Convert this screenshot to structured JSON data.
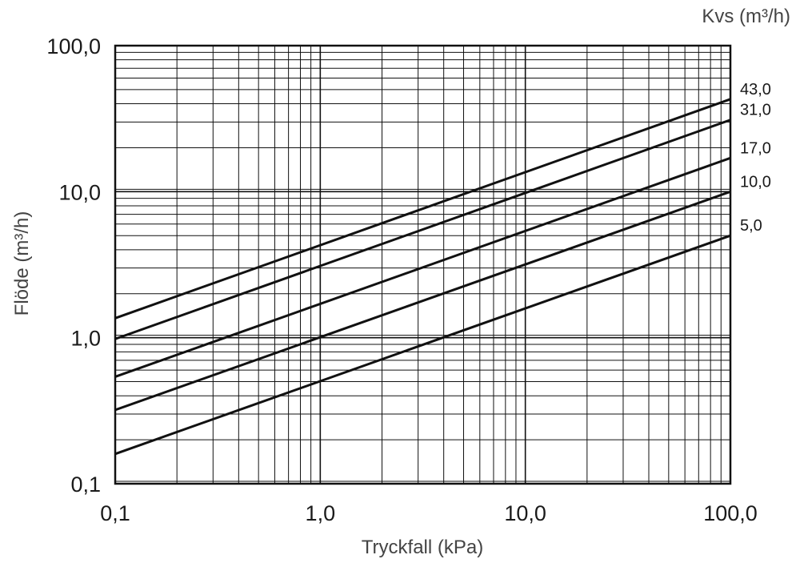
{
  "chart_data": {
    "type": "line",
    "title": "",
    "xlabel": "Tryckfall (kPa)",
    "ylabel": "Flöde (m³/h)",
    "legend_title": "Kvs (m³/h)",
    "x_scale": "log",
    "y_scale": "log",
    "xlim": [
      0.1,
      100
    ],
    "ylim": [
      0.1,
      100
    ],
    "x_ticks": [
      0.1,
      1,
      10,
      100
    ],
    "y_ticks": [
      0.1,
      1,
      10,
      100
    ],
    "x_tick_labels": [
      "0,1",
      "1,0",
      "10,0",
      "100,0"
    ],
    "y_tick_labels": [
      "0,1",
      "1,0",
      "10,0",
      "100,0"
    ],
    "grid": true,
    "legend_placement": "right, at line ends",
    "line_color": "#111111",
    "series": [
      {
        "name": "43,0",
        "kvs": 43.0,
        "x": [
          0.1,
          100
        ],
        "y": [
          1.36,
          43.0
        ]
      },
      {
        "name": "31,0",
        "kvs": 31.0,
        "x": [
          0.1,
          100
        ],
        "y": [
          0.98,
          31.0
        ]
      },
      {
        "name": "17,0",
        "kvs": 17.0,
        "x": [
          0.1,
          100
        ],
        "y": [
          0.54,
          17.0
        ]
      },
      {
        "name": "10,0",
        "kvs": 10.0,
        "x": [
          0.1,
          100
        ],
        "y": [
          0.32,
          10.0
        ]
      },
      {
        "name": "5,0",
        "kvs": 5.0,
        "x": [
          0.1,
          100
        ],
        "y": [
          0.16,
          5.0
        ]
      }
    ]
  }
}
